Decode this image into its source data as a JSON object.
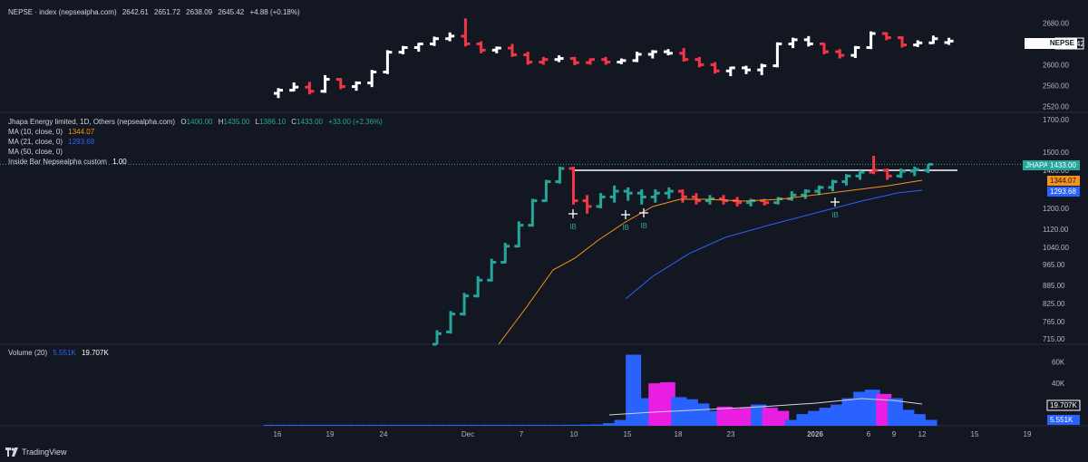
{
  "main_pane": {
    "symbol": "NEPSE · index (nepsealpha.com)",
    "open": "2642.61",
    "high": "2651.72",
    "low": "2638.09",
    "close": "2645.42",
    "change": "+4.88 (+0.18%)",
    "price_tag_name": "NEPSE",
    "price_tag_value": "2645.42"
  },
  "stock_pane": {
    "title": "Jhapa Energy limited, 1D, Others (nepsealpha.com)",
    "o_label": "O",
    "o_value": "1400.00",
    "h_label": "H",
    "h_value": "1435.00",
    "l_label": "L",
    "l_value": "1386.10",
    "c_label": "C",
    "c_value": "1433.00",
    "change": "+33.00 (+2.36%)",
    "ma10_label": "MA (10, close, 0)",
    "ma10_value": "1344.07",
    "ma21_label": "MA (21, close, 0)",
    "ma21_value": "1293.68",
    "ma50_label": "MA (50, close, 0)",
    "inside_bar_label": "Inside Bar Nepsealpha custom",
    "inside_bar_value": "1.00",
    "price_tag_name": "JHAPA",
    "price_tag_value": "1433.00",
    "ib_marker": "IB"
  },
  "volume_pane": {
    "label": "Volume (20)",
    "value1": "5.551K",
    "value2": "19.707K",
    "tag_ma": "19.707K",
    "tag_vol": "5.551K"
  },
  "branding": "TradingView",
  "colors": {
    "up_green": "#26a69a",
    "down_red": "#f23645",
    "white": "#ffffff",
    "ma10": "#f7931a",
    "ma21": "#2962ff",
    "vol_blue": "#2962ff",
    "vol_magenta": "#e91ee3"
  },
  "chart_data": [
    {
      "type": "ohlc",
      "name": "NEPSE",
      "y_ticks": [
        "2680.00",
        "2640.00",
        "2600.00",
        "2560.00",
        "2520.00"
      ],
      "ylim": [
        2512,
        2700
      ],
      "bars": [
        {
          "o": 2545,
          "h": 2555,
          "l": 2536,
          "c": 2551,
          "up": true
        },
        {
          "o": 2551,
          "h": 2566,
          "l": 2549,
          "c": 2557,
          "up": true
        },
        {
          "o": 2557,
          "h": 2567,
          "l": 2543,
          "c": 2549,
          "up": false
        },
        {
          "o": 2549,
          "h": 2580,
          "l": 2546,
          "c": 2572,
          "up": true
        },
        {
          "o": 2572,
          "h": 2574,
          "l": 2553,
          "c": 2558,
          "up": false
        },
        {
          "o": 2558,
          "h": 2568,
          "l": 2550,
          "c": 2565,
          "up": true
        },
        {
          "o": 2565,
          "h": 2590,
          "l": 2557,
          "c": 2586,
          "up": true
        },
        {
          "o": 2586,
          "h": 2628,
          "l": 2582,
          "c": 2624,
          "up": true
        },
        {
          "o": 2624,
          "h": 2636,
          "l": 2620,
          "c": 2633,
          "up": true
        },
        {
          "o": 2633,
          "h": 2642,
          "l": 2625,
          "c": 2640,
          "up": true
        },
        {
          "o": 2640,
          "h": 2654,
          "l": 2636,
          "c": 2650,
          "up": true
        },
        {
          "o": 2650,
          "h": 2662,
          "l": 2645,
          "c": 2655,
          "up": true
        },
        {
          "o": 2655,
          "h": 2689,
          "l": 2635,
          "c": 2640,
          "up": false
        },
        {
          "o": 2640,
          "h": 2645,
          "l": 2622,
          "c": 2628,
          "up": false
        },
        {
          "o": 2628,
          "h": 2635,
          "l": 2622,
          "c": 2632,
          "up": true
        },
        {
          "o": 2632,
          "h": 2640,
          "l": 2615,
          "c": 2619,
          "up": false
        },
        {
          "o": 2619,
          "h": 2625,
          "l": 2600,
          "c": 2605,
          "up": false
        },
        {
          "o": 2605,
          "h": 2615,
          "l": 2600,
          "c": 2610,
          "up": false
        },
        {
          "o": 2610,
          "h": 2618,
          "l": 2605,
          "c": 2612,
          "up": true
        },
        {
          "o": 2612,
          "h": 2615,
          "l": 2599,
          "c": 2604,
          "up": false
        },
        {
          "o": 2604,
          "h": 2612,
          "l": 2600,
          "c": 2610,
          "up": false
        },
        {
          "o": 2610,
          "h": 2615,
          "l": 2600,
          "c": 2605,
          "up": false
        },
        {
          "o": 2605,
          "h": 2612,
          "l": 2601,
          "c": 2608,
          "up": true
        },
        {
          "o": 2608,
          "h": 2625,
          "l": 2605,
          "c": 2620,
          "up": true
        },
        {
          "o": 2620,
          "h": 2628,
          "l": 2612,
          "c": 2625,
          "up": true
        },
        {
          "o": 2625,
          "h": 2630,
          "l": 2618,
          "c": 2622,
          "up": true
        },
        {
          "o": 2622,
          "h": 2632,
          "l": 2606,
          "c": 2610,
          "up": false
        },
        {
          "o": 2610,
          "h": 2615,
          "l": 2595,
          "c": 2600,
          "up": false
        },
        {
          "o": 2600,
          "h": 2605,
          "l": 2583,
          "c": 2588,
          "up": false
        },
        {
          "o": 2588,
          "h": 2596,
          "l": 2578,
          "c": 2594,
          "up": true
        },
        {
          "o": 2594,
          "h": 2598,
          "l": 2582,
          "c": 2590,
          "up": true
        },
        {
          "o": 2590,
          "h": 2602,
          "l": 2580,
          "c": 2598,
          "up": true
        },
        {
          "o": 2598,
          "h": 2643,
          "l": 2595,
          "c": 2640,
          "up": true
        },
        {
          "o": 2640,
          "h": 2652,
          "l": 2632,
          "c": 2648,
          "up": true
        },
        {
          "o": 2648,
          "h": 2655,
          "l": 2635,
          "c": 2640,
          "up": true
        },
        {
          "o": 2640,
          "h": 2642,
          "l": 2620,
          "c": 2625,
          "up": false
        },
        {
          "o": 2625,
          "h": 2630,
          "l": 2612,
          "c": 2618,
          "up": false
        },
        {
          "o": 2618,
          "h": 2636,
          "l": 2613,
          "c": 2633,
          "up": true
        },
        {
          "o": 2633,
          "h": 2664,
          "l": 2630,
          "c": 2660,
          "up": true
        },
        {
          "o": 2660,
          "h": 2662,
          "l": 2647,
          "c": 2652,
          "up": false
        },
        {
          "o": 2652,
          "h": 2655,
          "l": 2633,
          "c": 2638,
          "up": false
        },
        {
          "o": 2638,
          "h": 2647,
          "l": 2634,
          "c": 2642,
          "up": true
        },
        {
          "o": 2642,
          "h": 2656,
          "l": 2640,
          "c": 2650,
          "up": true
        },
        {
          "o": 2642.61,
          "h": 2651.72,
          "l": 2638.09,
          "c": 2645.42,
          "up": true
        }
      ],
      "bar_index_start": 0
    },
    {
      "type": "ohlc",
      "name": "Jhapa Energy limited",
      "y_ticks": [
        "1700.00",
        "1500.00",
        "1400.00",
        "1200.00",
        "1120.00",
        "1040.00",
        "965.00",
        "885.00",
        "825.00",
        "765.00",
        "715.00"
      ],
      "series": [
        {
          "name": "MA (10, close, 0)",
          "last": 1344.07
        },
        {
          "name": "MA (21, close, 0)",
          "last": 1293.68
        },
        {
          "name": "MA (50, close, 0)"
        }
      ],
      "resistance": 1400,
      "inside_bar_markers": 4
    },
    {
      "type": "bar",
      "name": "Volume (20)",
      "y_ticks": [
        "60K",
        "40K"
      ],
      "ylim": [
        0,
        70000
      ],
      "values": [
        900,
        900,
        900,
        900,
        900,
        900,
        900,
        900,
        900,
        900,
        900,
        900,
        900,
        900,
        900,
        900,
        900,
        900,
        900,
        900,
        900,
        900,
        900,
        900,
        900,
        900,
        900,
        1000,
        1100,
        1200,
        2500,
        5500,
        67000,
        26000,
        40000,
        41000,
        27000,
        25000,
        21000,
        14000,
        18000,
        16000,
        17000,
        20000,
        17000,
        14000,
        5500,
        11000,
        14000,
        17000,
        20000,
        26000,
        32000,
        34000,
        30000,
        26000,
        15000,
        11000,
        5551
      ],
      "colors": [
        "b",
        "b",
        "b",
        "b",
        "b",
        "b",
        "b",
        "b",
        "b",
        "b",
        "b",
        "b",
        "b",
        "b",
        "b",
        "b",
        "b",
        "b",
        "b",
        "b",
        "b",
        "b",
        "b",
        "b",
        "b",
        "b",
        "b",
        "b",
        "b",
        "b",
        "b",
        "b",
        "b",
        "b",
        "m",
        "m",
        "b",
        "b",
        "b",
        "b",
        "m",
        "m",
        "m",
        "b",
        "m",
        "m",
        "b",
        "b",
        "b",
        "b",
        "b",
        "b",
        "b",
        "b",
        "m",
        "b",
        "b",
        "b",
        "b"
      ],
      "ma_last": 19707
    }
  ],
  "x_axis": {
    "labels": [
      "16",
      "19",
      "24",
      "Dec",
      "7",
      "10",
      "15",
      "18",
      "23",
      "2026",
      "6",
      "9",
      "12",
      "15",
      "19"
    ]
  }
}
